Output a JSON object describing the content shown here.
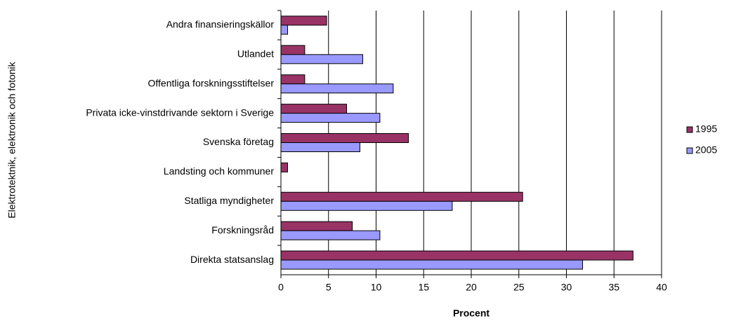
{
  "chart_data": {
    "type": "bar",
    "orientation": "horizontal",
    "xlabel": "Procent",
    "ylabel": "Elektrotektnik, elektronik och fotonik",
    "categories": [
      "Andra finansieringskällor",
      "Utlandet",
      "Offentliga forskningsstiftelser",
      "Privata icke-vinstdrivande sektorn i Sverige",
      "Svenska företag",
      "Landsting och kommuner",
      "Statliga myndigheter",
      "Forskningsråd",
      "Direkta statsanslag"
    ],
    "series": [
      {
        "name": "1995",
        "color": "#993366",
        "values": [
          4.8,
          2.5,
          2.5,
          6.9,
          13.4,
          0.7,
          25.4,
          7.5,
          37.0
        ]
      },
      {
        "name": "2005",
        "color": "#9999ff",
        "values": [
          0.7,
          8.6,
          11.8,
          10.4,
          8.3,
          0,
          18.0,
          10.4,
          31.7
        ]
      }
    ],
    "xlim": [
      0,
      40
    ],
    "xticks": [
      0,
      5,
      10,
      15,
      20,
      25,
      30,
      35,
      40
    ],
    "grid": true,
    "legend": "right"
  }
}
